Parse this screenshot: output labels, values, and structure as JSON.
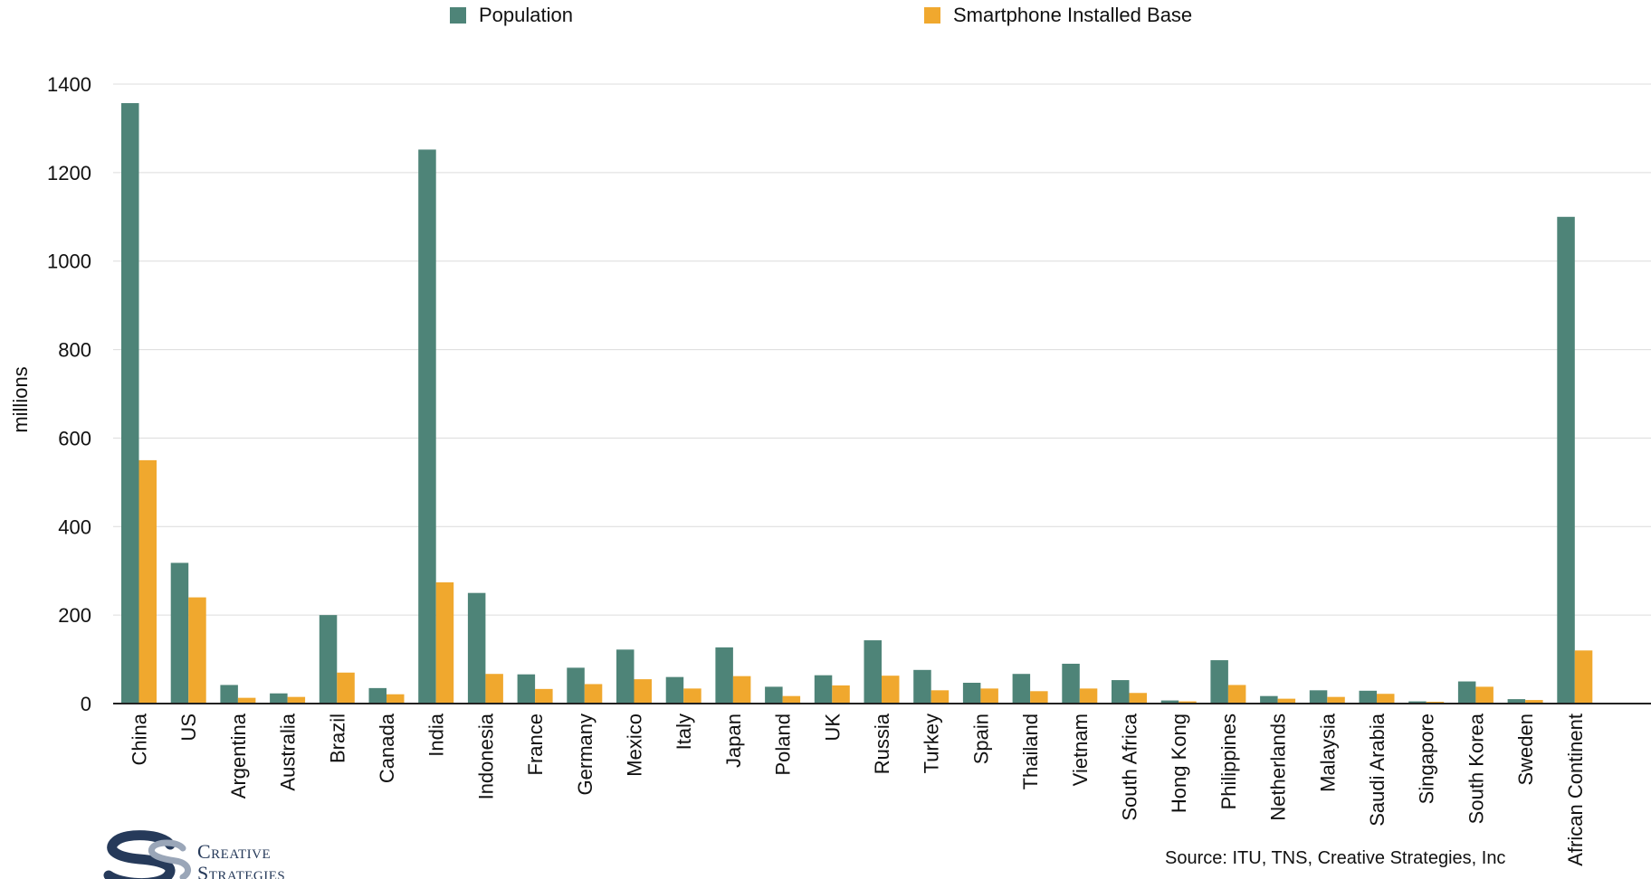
{
  "legend": {
    "population_label": "Population",
    "smartphone_label": "Smartphone Installed Base"
  },
  "colors": {
    "population": "#4e8478",
    "smartphone": "#f0a82e",
    "grid": "#dcdcdc",
    "axis": "#222222"
  },
  "source": "Source: ITU, TNS, Creative Strategies, Inc",
  "logo": {
    "line1": "Creative",
    "line2": "Strategies"
  },
  "chart_data": {
    "type": "bar",
    "title": "",
    "xlabel": "",
    "ylabel": "millions",
    "ylim": [
      0,
      1400
    ],
    "yticks": [
      0,
      200,
      400,
      600,
      800,
      1000,
      1200,
      1400
    ],
    "grid": true,
    "legend_position": "top",
    "categories": [
      "China",
      "US",
      "Argentina",
      "Australia",
      "Brazil",
      "Canada",
      "India",
      "Indonesia",
      "France",
      "Germany",
      "Mexico",
      "Italy",
      "Japan",
      "Poland",
      "UK",
      "Russia",
      "Turkey",
      "Spain",
      "Thailand",
      "Vietnam",
      "South Africa",
      "Hong Kong",
      "Philippines",
      "Netherlands",
      "Malaysia",
      "Saudi Arabia",
      "Singapore",
      "South Korea",
      "Sweden",
      "African Continent"
    ],
    "series": [
      {
        "name": "Population",
        "values": [
          1357,
          318,
          42,
          23,
          200,
          35,
          1252,
          250,
          66,
          81,
          122,
          60,
          127,
          38,
          64,
          143,
          76,
          47,
          67,
          90,
          53,
          7,
          98,
          17,
          30,
          29,
          5,
          50,
          10,
          1100
        ]
      },
      {
        "name": "Smartphone Installed Base",
        "values": [
          550,
          240,
          13,
          15,
          70,
          21,
          274,
          67,
          33,
          44,
          55,
          34,
          62,
          17,
          41,
          63,
          30,
          34,
          28,
          34,
          24,
          5,
          42,
          11,
          15,
          22,
          4,
          38,
          8,
          120
        ]
      }
    ]
  }
}
